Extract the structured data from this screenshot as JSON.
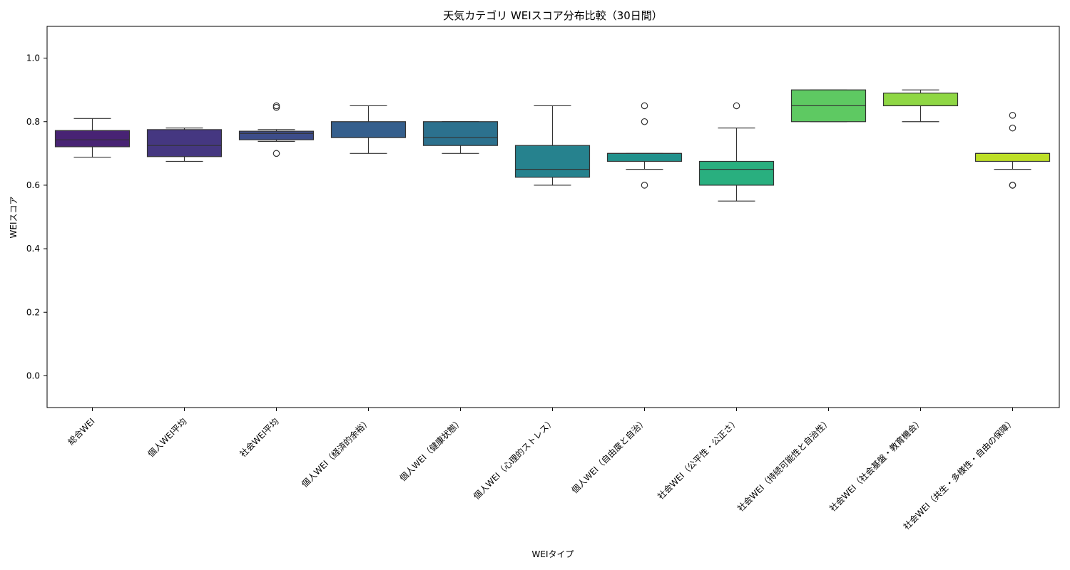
{
  "chart_data": {
    "type": "box",
    "title": "天気カテゴリ WEIスコア分布比較（30日間）",
    "xlabel": "WEIタイプ",
    "ylabel": "WEIスコア",
    "ylim": [
      -0.1,
      1.1
    ],
    "yticks": [
      0.0,
      0.2,
      0.4,
      0.6,
      0.8,
      1.0
    ],
    "grid": false,
    "legend": "none",
    "categories": [
      "総合WEI",
      "個人WEI平均",
      "社会WEI平均",
      "個人WEI（経済的余裕）",
      "個人WEI（健康状態）",
      "個人WEI（心理的ストレス）",
      "個人WEI（自由度と自治）",
      "社会WEI（公平性・公正さ）",
      "社会WEI（持続可能性と自治性）",
      "社会WEI（社会基盤・教育機会）",
      "社会WEI（共生・多様性・自由の保障）"
    ],
    "boxes": [
      {
        "whisker_low": 0.688,
        "q1": 0.721,
        "median": 0.743,
        "q3": 0.772,
        "whisker_high": 0.81,
        "outliers": [],
        "color": "#482374"
      },
      {
        "whisker_low": 0.675,
        "q1": 0.69,
        "median": 0.725,
        "q3": 0.775,
        "whisker_high": 0.78,
        "outliers": [],
        "color": "#453781"
      },
      {
        "whisker_low": 0.738,
        "q1": 0.743,
        "median": 0.763,
        "q3": 0.77,
        "whisker_high": 0.775,
        "outliers": [
          0.85,
          0.845,
          0.7
        ],
        "color": "#3d4d8a"
      },
      {
        "whisker_low": 0.7,
        "q1": 0.75,
        "median": 0.75,
        "q3": 0.8,
        "whisker_high": 0.85,
        "outliers": [],
        "color": "#355f8d"
      },
      {
        "whisker_low": 0.7,
        "q1": 0.725,
        "median": 0.75,
        "q3": 0.8,
        "whisker_high": 0.8,
        "outliers": [],
        "color": "#2c718e"
      },
      {
        "whisker_low": 0.6,
        "q1": 0.625,
        "median": 0.65,
        "q3": 0.725,
        "whisker_high": 0.85,
        "outliers": [],
        "color": "#26828e"
      },
      {
        "whisker_low": 0.65,
        "q1": 0.675,
        "median": 0.7,
        "q3": 0.7,
        "whisker_high": 0.7,
        "outliers": [
          0.85,
          0.8,
          0.6
        ],
        "color": "#21918c"
      },
      {
        "whisker_low": 0.55,
        "q1": 0.6,
        "median": 0.65,
        "q3": 0.675,
        "whisker_high": 0.78,
        "outliers": [
          0.85
        ],
        "color": "#29af7f"
      },
      {
        "whisker_low": 0.8,
        "q1": 0.8,
        "median": 0.85,
        "q3": 0.9,
        "whisker_high": 0.9,
        "outliers": [],
        "color": "#5ec962"
      },
      {
        "whisker_low": 0.8,
        "q1": 0.85,
        "median": 0.85,
        "q3": 0.89,
        "whisker_high": 0.9,
        "outliers": [],
        "color": "#8fd744"
      },
      {
        "whisker_low": 0.65,
        "q1": 0.675,
        "median": 0.7,
        "q3": 0.7,
        "whisker_high": 0.7,
        "outliers": [
          0.82,
          0.78,
          0.6,
          0.6
        ],
        "color": "#bddf26"
      }
    ]
  }
}
